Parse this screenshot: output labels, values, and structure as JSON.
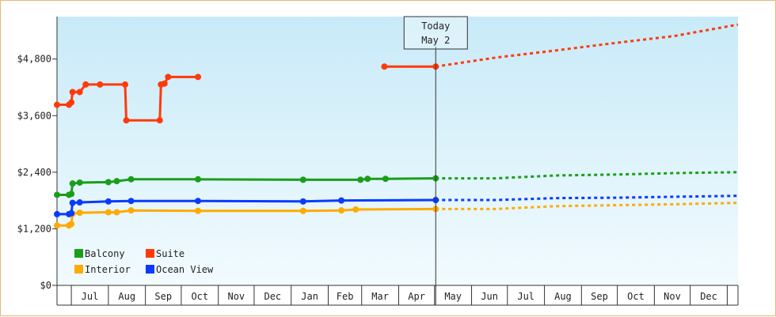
{
  "chart_data": {
    "type": "line",
    "y_ticks": [
      0,
      1200,
      2400,
      3600,
      4800
    ],
    "y_tick_labels": [
      "$0",
      "$1,200",
      "$2,400",
      "$3,600",
      "$4,800"
    ],
    "ylim": [
      0,
      5700
    ],
    "x_domain_days": [
      -317,
      253
    ],
    "month_ticks": [
      {
        "label": "Jul",
        "start": -305,
        "end": -274
      },
      {
        "label": "Aug",
        "start": -274,
        "end": -243
      },
      {
        "label": "Sep",
        "start": -243,
        "end": -213
      },
      {
        "label": "Oct",
        "start": -213,
        "end": -182
      },
      {
        "label": "Nov",
        "start": -182,
        "end": -152
      },
      {
        "label": "Dec",
        "start": -152,
        "end": -121
      },
      {
        "label": "Jan",
        "start": -121,
        "end": -90
      },
      {
        "label": "Feb",
        "start": -90,
        "end": -62
      },
      {
        "label": "Mar",
        "start": -62,
        "end": -31
      },
      {
        "label": "Apr",
        "start": -31,
        "end": -1
      },
      {
        "label": "May",
        "start": -1,
        "end": 30
      },
      {
        "label": "Jun",
        "start": 30,
        "end": 60
      },
      {
        "label": "Jul",
        "start": 60,
        "end": 91
      },
      {
        "label": "Aug",
        "start": 91,
        "end": 122
      },
      {
        "label": "Sep",
        "start": 122,
        "end": 152
      },
      {
        "label": "Oct",
        "start": 152,
        "end": 183
      },
      {
        "label": "Nov",
        "start": 183,
        "end": 213
      },
      {
        "label": "Dec",
        "start": 213,
        "end": 244
      }
    ],
    "today": {
      "label_line1": "Today",
      "label_line2": "May 2",
      "x": 0
    },
    "grid": false,
    "legend_position": "bottom-left",
    "series": [
      {
        "name": "Balcony",
        "color": "#1a9e1a",
        "points": [
          [
            -317,
            1920
          ],
          [
            -307,
            1920
          ],
          [
            -305,
            1940
          ],
          [
            -304,
            2160
          ],
          [
            -298,
            2180
          ],
          [
            -274,
            2190
          ],
          [
            -267,
            2210
          ],
          [
            -255,
            2250
          ],
          [
            -199,
            2250
          ],
          [
            -111,
            2240
          ],
          [
            -63,
            2240
          ],
          [
            -57,
            2260
          ],
          [
            -42,
            2260
          ],
          [
            0,
            2270
          ]
        ],
        "projection": [
          [
            0,
            2270
          ],
          [
            50,
            2270
          ],
          [
            100,
            2330
          ],
          [
            150,
            2350
          ],
          [
            200,
            2380
          ],
          [
            253,
            2400
          ]
        ]
      },
      {
        "name": "Suite",
        "color": "#ff3a0a",
        "segments": [
          [
            [
              -317,
              3830
            ],
            [
              -307,
              3830
            ],
            [
              -305,
              3880
            ],
            [
              -304,
              4100
            ],
            [
              -298,
              4100
            ],
            [
              -293,
              4260
            ],
            [
              -281,
              4260
            ],
            [
              -260,
              4260
            ],
            [
              -259,
              3500
            ],
            [
              -231,
              3500
            ],
            [
              -230,
              4260
            ],
            [
              -227,
              4280
            ],
            [
              -224,
              4420
            ],
            [
              -199,
              4420
            ]
          ],
          [
            [
              -43,
              4640
            ],
            [
              0,
              4640
            ]
          ]
        ],
        "projection": [
          [
            0,
            4640
          ],
          [
            50,
            4830
          ],
          [
            100,
            4980
          ],
          [
            150,
            5140
          ],
          [
            200,
            5290
          ],
          [
            253,
            5530
          ]
        ]
      },
      {
        "name": "Interior",
        "color": "#ffaa00",
        "points": [
          [
            -317,
            1270
          ],
          [
            -307,
            1270
          ],
          [
            -305,
            1300
          ],
          [
            -304,
            1520
          ],
          [
            -298,
            1540
          ],
          [
            -274,
            1550
          ],
          [
            -267,
            1550
          ],
          [
            -255,
            1590
          ],
          [
            -199,
            1580
          ],
          [
            -111,
            1580
          ],
          [
            -79,
            1590
          ],
          [
            -67,
            1610
          ],
          [
            0,
            1620
          ]
        ],
        "projection": [
          [
            0,
            1620
          ],
          [
            50,
            1620
          ],
          [
            100,
            1680
          ],
          [
            150,
            1700
          ],
          [
            200,
            1720
          ],
          [
            253,
            1750
          ]
        ]
      },
      {
        "name": "Ocean View",
        "color": "#0a3aff",
        "points": [
          [
            -317,
            1510
          ],
          [
            -307,
            1510
          ],
          [
            -305,
            1530
          ],
          [
            -304,
            1750
          ],
          [
            -298,
            1760
          ],
          [
            -274,
            1780
          ],
          [
            -255,
            1790
          ],
          [
            -199,
            1790
          ],
          [
            -111,
            1780
          ],
          [
            -79,
            1800
          ],
          [
            0,
            1810
          ]
        ],
        "projection": [
          [
            0,
            1810
          ],
          [
            50,
            1810
          ],
          [
            100,
            1850
          ],
          [
            150,
            1860
          ],
          [
            200,
            1880
          ],
          [
            253,
            1900
          ]
        ]
      }
    ]
  }
}
